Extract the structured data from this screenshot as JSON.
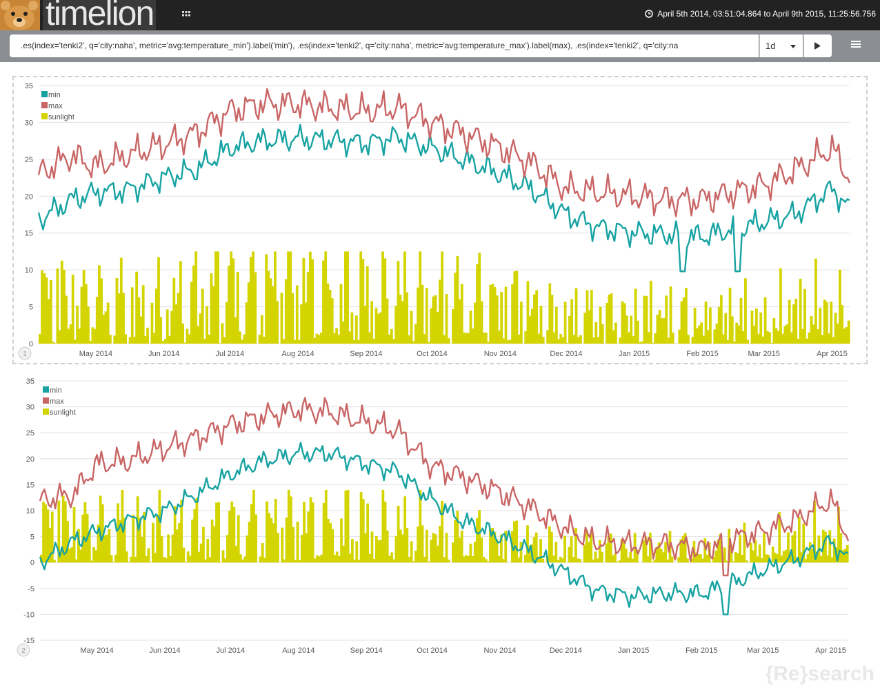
{
  "app": {
    "title": "timelion",
    "time_range": "April 5th 2014, 03:51:04.864 to April 9th 2015, 11:25:56.756"
  },
  "icons": {
    "bear": "bear-logo-icon",
    "grid": "grid-menu-icon",
    "clock": "clock-icon",
    "run": "play-icon",
    "menu": "hamburger-menu-icon"
  },
  "query": {
    "expression": ".es(index='tenki2', q='city:naha', metric='avg:temperature_min').label('min'),  .es(index='tenki2', q='city:naha', metric='avg:temperature_max').label(max), .es(index='tenki2', q='city:na",
    "interval": "1d"
  },
  "colors": {
    "min": "#17a2a2",
    "max": "#c96565",
    "sunlight": "#d4d400",
    "topbar": "#222222",
    "exprbar": "#8b8f94"
  },
  "watermark": "{Re}search",
  "chart_data": [
    {
      "type": "line",
      "panel_number": "1",
      "x_range": [
        "2014-04-05",
        "2015-04-09"
      ],
      "xticks": [
        "May 2014",
        "Jun 2014",
        "Jul 2014",
        "Aug 2014",
        "Sep 2014",
        "Oct 2014",
        "Nov 2014",
        "Dec 2014",
        "Jan 2015",
        "Feb 2015",
        "Mar 2015",
        "Apr 2015"
      ],
      "xtick_dates": [
        "2014-05-01",
        "2014-06-01",
        "2014-07-01",
        "2014-08-01",
        "2014-09-01",
        "2014-10-01",
        "2014-11-01",
        "2014-12-01",
        "2015-01-01",
        "2015-02-01",
        "2015-03-01",
        "2015-04-01"
      ],
      "ylim": [
        0,
        35
      ],
      "yticks": [
        0,
        5,
        10,
        15,
        20,
        25,
        30,
        35
      ],
      "grid": true,
      "legend_position": "top-left",
      "series": [
        {
          "name": "min",
          "kind": "line",
          "color": "#17a2a2",
          "anchors": [
            [
              "2014-04-05",
              16.8
            ],
            [
              "2014-04-20",
              19.5
            ],
            [
              "2014-05-01",
              20.5
            ],
            [
              "2014-05-15",
              20.8
            ],
            [
              "2014-06-01",
              22.5
            ],
            [
              "2014-06-15",
              23.5
            ],
            [
              "2014-07-01",
              26.5
            ],
            [
              "2014-07-15",
              27.5
            ],
            [
              "2014-08-01",
              27.8
            ],
            [
              "2014-08-15",
              27.6
            ],
            [
              "2014-09-01",
              27.2
            ],
            [
              "2014-09-15",
              28.0
            ],
            [
              "2014-10-01",
              26.5
            ],
            [
              "2014-10-15",
              25.0
            ],
            [
              "2014-11-01",
              23.0
            ],
            [
              "2014-11-15",
              21.0
            ],
            [
              "2014-12-01",
              17.5
            ],
            [
              "2014-12-15",
              15.8
            ],
            [
              "2015-01-01",
              15.0
            ],
            [
              "2015-01-15",
              14.8
            ],
            [
              "2015-02-01",
              14.5
            ],
            [
              "2015-02-15",
              15.5
            ],
            [
              "2015-03-01",
              16.5
            ],
            [
              "2015-03-15",
              17.5
            ],
            [
              "2015-04-01",
              21.0
            ],
            [
              "2015-04-09",
              18.3
            ]
          ],
          "amplitude": 2.0,
          "low_dips": [
            [
              "2015-01-23",
              9.8
            ],
            [
              "2015-02-17",
              9.8
            ]
          ]
        },
        {
          "name": "max",
          "kind": "line",
          "color": "#c96565",
          "anchors": [
            [
              "2014-04-05",
              23.0
            ],
            [
              "2014-04-20",
              25.5
            ],
            [
              "2014-05-01",
              24.0
            ],
            [
              "2014-05-15",
              25.5
            ],
            [
              "2014-06-01",
              27.0
            ],
            [
              "2014-06-15",
              28.5
            ],
            [
              "2014-07-01",
              31.5
            ],
            [
              "2014-07-15",
              32.5
            ],
            [
              "2014-08-01",
              32.5
            ],
            [
              "2014-08-15",
              32.0
            ],
            [
              "2014-09-01",
              31.5
            ],
            [
              "2014-09-15",
              32.0
            ],
            [
              "2014-10-01",
              30.0
            ],
            [
              "2014-10-15",
              28.5
            ],
            [
              "2014-11-01",
              26.5
            ],
            [
              "2014-11-15",
              24.5
            ],
            [
              "2014-12-01",
              21.0
            ],
            [
              "2014-12-15",
              20.5
            ],
            [
              "2015-01-01",
              20.0
            ],
            [
              "2015-01-15",
              19.5
            ],
            [
              "2015-02-01",
              19.5
            ],
            [
              "2015-02-15",
              20.5
            ],
            [
              "2015-03-01",
              21.5
            ],
            [
              "2015-03-15",
              23.5
            ],
            [
              "2015-04-01",
              26.5
            ],
            [
              "2015-04-09",
              22.5
            ]
          ],
          "amplitude": 2.5,
          "low_dips": []
        },
        {
          "name": "sunlight",
          "kind": "bars",
          "color": "#d4d400",
          "anchors": [
            [
              "2014-04-05",
              7.0
            ],
            [
              "2014-05-15",
              5.5
            ],
            [
              "2014-06-01",
              5.0
            ],
            [
              "2014-06-15",
              6.5
            ],
            [
              "2014-07-01",
              7.5
            ],
            [
              "2014-08-01",
              7.5
            ],
            [
              "2014-09-01",
              7.0
            ],
            [
              "2014-10-01",
              6.5
            ],
            [
              "2014-11-01",
              6.0
            ],
            [
              "2014-12-01",
              4.0
            ],
            [
              "2015-01-01",
              4.5
            ],
            [
              "2015-02-01",
              4.0
            ],
            [
              "2015-03-01",
              4.5
            ],
            [
              "2015-04-01",
              6.0
            ],
            [
              "2015-04-09",
              5.5
            ]
          ],
          "max_value": 12.5
        }
      ]
    },
    {
      "type": "line",
      "panel_number": "2",
      "x_range": [
        "2014-04-05",
        "2015-04-09"
      ],
      "xticks": [
        "May 2014",
        "Jun 2014",
        "Jul 2014",
        "Aug 2014",
        "Sep 2014",
        "Oct 2014",
        "Nov 2014",
        "Dec 2014",
        "Jan 2015",
        "Feb 2015",
        "Mar 2015",
        "Apr 2015"
      ],
      "xtick_dates": [
        "2014-05-01",
        "2014-06-01",
        "2014-07-01",
        "2014-08-01",
        "2014-09-01",
        "2014-10-01",
        "2014-11-01",
        "2014-12-01",
        "2015-01-01",
        "2015-02-01",
        "2015-03-01",
        "2015-04-01"
      ],
      "ylim": [
        -15,
        35
      ],
      "yticks": [
        -15,
        -10,
        -5,
        0,
        5,
        10,
        15,
        20,
        25,
        30,
        35
      ],
      "grid": true,
      "legend_position": "top-left",
      "series": [
        {
          "name": "min",
          "kind": "line",
          "color": "#17a2a2",
          "anchors": [
            [
              "2014-04-05",
              0.0
            ],
            [
              "2014-04-20",
              4.0
            ],
            [
              "2014-05-01",
              6.0
            ],
            [
              "2014-05-15",
              8.0
            ],
            [
              "2014-06-01",
              10.0
            ],
            [
              "2014-06-15",
              13.0
            ],
            [
              "2014-07-01",
              17.0
            ],
            [
              "2014-07-15",
              19.5
            ],
            [
              "2014-08-01",
              21.0
            ],
            [
              "2014-08-15",
              21.0
            ],
            [
              "2014-09-01",
              19.0
            ],
            [
              "2014-09-15",
              17.5
            ],
            [
              "2014-10-01",
              12.0
            ],
            [
              "2014-10-15",
              8.0
            ],
            [
              "2014-11-01",
              5.0
            ],
            [
              "2014-11-15",
              2.0
            ],
            [
              "2014-12-01",
              -2.0
            ],
            [
              "2014-12-15",
              -5.5
            ],
            [
              "2015-01-01",
              -6.5
            ],
            [
              "2015-01-15",
              -6.0
            ],
            [
              "2015-02-01",
              -6.0
            ],
            [
              "2015-02-15",
              -4.0
            ],
            [
              "2015-03-01",
              -1.5
            ],
            [
              "2015-03-15",
              0.5
            ],
            [
              "2015-04-01",
              4.0
            ],
            [
              "2015-04-09",
              0.5
            ]
          ],
          "amplitude": 2.2,
          "low_dips": [
            [
              "2015-02-12",
              -10.0
            ]
          ]
        },
        {
          "name": "max",
          "kind": "line",
          "color": "#c96565",
          "anchors": [
            [
              "2014-04-05",
              12.0
            ],
            [
              "2014-04-20",
              13.0
            ],
            [
              "2014-05-01",
              19.0
            ],
            [
              "2014-05-15",
              19.5
            ],
            [
              "2014-06-01",
              22.0
            ],
            [
              "2014-06-15",
              24.0
            ],
            [
              "2014-07-01",
              26.5
            ],
            [
              "2014-07-15",
              28.0
            ],
            [
              "2014-08-01",
              29.5
            ],
            [
              "2014-08-15",
              29.0
            ],
            [
              "2014-09-01",
              27.0
            ],
            [
              "2014-09-15",
              25.5
            ],
            [
              "2014-10-01",
              18.5
            ],
            [
              "2014-10-15",
              16.5
            ],
            [
              "2014-11-01",
              13.5
            ],
            [
              "2014-11-15",
              10.5
            ],
            [
              "2014-12-01",
              6.5
            ],
            [
              "2014-12-15",
              4.0
            ],
            [
              "2015-01-01",
              3.5
            ],
            [
              "2015-01-15",
              3.5
            ],
            [
              "2015-02-01",
              2.5
            ],
            [
              "2015-02-15",
              4.5
            ],
            [
              "2015-03-01",
              6.0
            ],
            [
              "2015-03-15",
              8.0
            ],
            [
              "2015-04-01",
              12.0
            ],
            [
              "2015-04-09",
              5.0
            ]
          ],
          "amplitude": 3.0,
          "low_dips": [
            [
              "2015-02-12",
              -2.5
            ]
          ]
        },
        {
          "name": "sunlight",
          "kind": "bars",
          "color": "#d4d400",
          "anchors": [
            [
              "2014-04-05",
              8.0
            ],
            [
              "2014-05-15",
              7.0
            ],
            [
              "2014-06-01",
              6.5
            ],
            [
              "2014-06-20",
              6.0
            ],
            [
              "2014-07-01",
              7.0
            ],
            [
              "2014-08-01",
              7.5
            ],
            [
              "2014-09-01",
              7.5
            ],
            [
              "2014-10-01",
              5.5
            ],
            [
              "2014-11-01",
              4.5
            ],
            [
              "2014-12-01",
              3.5
            ],
            [
              "2015-01-01",
              3.0
            ],
            [
              "2015-02-01",
              3.0
            ],
            [
              "2015-03-01",
              4.0
            ],
            [
              "2015-04-01",
              6.5
            ],
            [
              "2015-04-09",
              6.0
            ]
          ],
          "max_value": 14.0
        }
      ]
    }
  ]
}
